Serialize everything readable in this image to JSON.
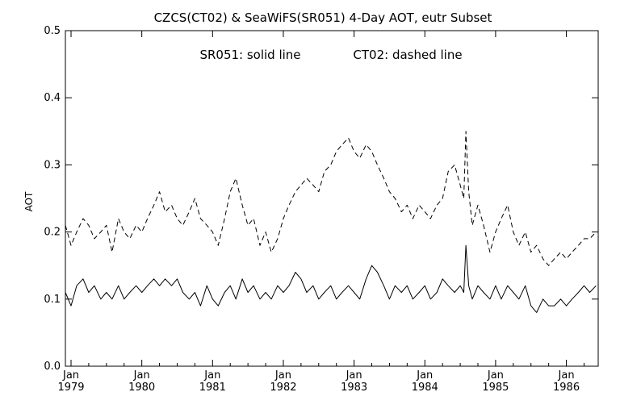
{
  "chart_data": {
    "type": "line",
    "title": "CZCS(CT02) & SeaWiFS(SR051) 4-Day AOT, eutr Subset",
    "annotation_left": "SR051: solid line",
    "annotation_right": "CT02: dashed line",
    "ylabel": "AOT",
    "xlabel": "",
    "ylim": [
      0.0,
      0.5
    ],
    "xlim": [
      1978.92,
      1986.45
    ],
    "yticks": [
      "0.0",
      "0.1",
      "0.2",
      "0.3",
      "0.4",
      "0.5"
    ],
    "xticks": [
      {
        "month": "Jan",
        "year": "1979",
        "x": 1979.0
      },
      {
        "month": "Jan",
        "year": "1980",
        "x": 1980.0
      },
      {
        "month": "Jan",
        "year": "1981",
        "x": 1981.0
      },
      {
        "month": "Jan",
        "year": "1982",
        "x": 1982.0
      },
      {
        "month": "Jan",
        "year": "1983",
        "x": 1983.0
      },
      {
        "month": "Jan",
        "year": "1984",
        "x": 1984.0
      },
      {
        "month": "Jan",
        "year": "1985",
        "x": 1985.0
      },
      {
        "month": "Jan",
        "year": "1986",
        "x": 1986.0
      }
    ],
    "grid": false,
    "series": [
      {
        "name": "SR051",
        "style": "solid",
        "color": "#000000",
        "x": [
          1978.92,
          1979.0,
          1979.08,
          1979.17,
          1979.25,
          1979.33,
          1979.42,
          1979.5,
          1979.58,
          1979.67,
          1979.75,
          1979.83,
          1979.92,
          1980.0,
          1980.08,
          1980.17,
          1980.25,
          1980.33,
          1980.42,
          1980.5,
          1980.58,
          1980.67,
          1980.75,
          1980.83,
          1980.92,
          1981.0,
          1981.08,
          1981.17,
          1981.25,
          1981.33,
          1981.42,
          1981.5,
          1981.58,
          1981.67,
          1981.75,
          1981.83,
          1981.92,
          1982.0,
          1982.08,
          1982.17,
          1982.25,
          1982.33,
          1982.42,
          1982.5,
          1982.58,
          1982.67,
          1982.75,
          1982.83,
          1982.92,
          1983.0,
          1983.08,
          1983.17,
          1983.25,
          1983.33,
          1983.42,
          1983.5,
          1983.58,
          1983.67,
          1983.75,
          1983.83,
          1983.92,
          1984.0,
          1984.08,
          1984.17,
          1984.25,
          1984.33,
          1984.42,
          1984.5,
          1984.55,
          1984.58,
          1984.62,
          1984.67,
          1984.75,
          1984.83,
          1984.92,
          1985.0,
          1985.08,
          1985.17,
          1985.25,
          1985.33,
          1985.42,
          1985.5,
          1985.58,
          1985.67,
          1985.75,
          1985.83,
          1985.92,
          1986.0,
          1986.08,
          1986.17,
          1986.25,
          1986.33,
          1986.42
        ],
        "values": [
          0.11,
          0.09,
          0.12,
          0.13,
          0.11,
          0.12,
          0.1,
          0.11,
          0.1,
          0.12,
          0.1,
          0.11,
          0.12,
          0.11,
          0.12,
          0.13,
          0.12,
          0.13,
          0.12,
          0.13,
          0.11,
          0.1,
          0.11,
          0.09,
          0.12,
          0.1,
          0.09,
          0.11,
          0.12,
          0.1,
          0.13,
          0.11,
          0.12,
          0.1,
          0.11,
          0.1,
          0.12,
          0.11,
          0.12,
          0.14,
          0.13,
          0.11,
          0.12,
          0.1,
          0.11,
          0.12,
          0.1,
          0.11,
          0.12,
          0.11,
          0.1,
          0.13,
          0.15,
          0.14,
          0.12,
          0.1,
          0.12,
          0.11,
          0.12,
          0.1,
          0.11,
          0.12,
          0.1,
          0.11,
          0.13,
          0.12,
          0.11,
          0.12,
          0.11,
          0.18,
          0.12,
          0.1,
          0.12,
          0.11,
          0.1,
          0.12,
          0.1,
          0.12,
          0.11,
          0.1,
          0.12,
          0.09,
          0.08,
          0.1,
          0.09,
          0.09,
          0.1,
          0.09,
          0.1,
          0.11,
          0.12,
          0.11,
          0.12
        ]
      },
      {
        "name": "CT02",
        "style": "dashed",
        "color": "#000000",
        "x": [
          1978.92,
          1979.0,
          1979.08,
          1979.17,
          1979.25,
          1979.33,
          1979.42,
          1979.5,
          1979.58,
          1979.67,
          1979.75,
          1979.83,
          1979.92,
          1980.0,
          1980.08,
          1980.17,
          1980.25,
          1980.33,
          1980.42,
          1980.5,
          1980.58,
          1980.67,
          1980.75,
          1980.83,
          1980.92,
          1981.0,
          1981.08,
          1981.17,
          1981.25,
          1981.33,
          1981.42,
          1981.5,
          1981.58,
          1981.67,
          1981.75,
          1981.83,
          1981.92,
          1982.0,
          1982.08,
          1982.17,
          1982.25,
          1982.33,
          1982.42,
          1982.5,
          1982.58,
          1982.67,
          1982.75,
          1982.83,
          1982.92,
          1983.0,
          1983.08,
          1983.17,
          1983.25,
          1983.33,
          1983.42,
          1983.5,
          1983.58,
          1983.67,
          1983.75,
          1983.83,
          1983.92,
          1984.0,
          1984.08,
          1984.17,
          1984.25,
          1984.33,
          1984.42,
          1984.5,
          1984.55,
          1984.58,
          1984.62,
          1984.67,
          1984.75,
          1984.83,
          1984.92,
          1985.0,
          1985.08,
          1985.17,
          1985.25,
          1985.33,
          1985.42,
          1985.5,
          1985.58,
          1985.67,
          1985.75,
          1985.83,
          1985.92,
          1986.0,
          1986.08,
          1986.17,
          1986.25,
          1986.33,
          1986.42
        ],
        "values": [
          0.21,
          0.18,
          0.2,
          0.22,
          0.21,
          0.19,
          0.2,
          0.21,
          0.17,
          0.22,
          0.2,
          0.19,
          0.21,
          0.2,
          0.22,
          0.24,
          0.26,
          0.23,
          0.24,
          0.22,
          0.21,
          0.23,
          0.25,
          0.22,
          0.21,
          0.2,
          0.18,
          0.22,
          0.26,
          0.28,
          0.24,
          0.21,
          0.22,
          0.18,
          0.2,
          0.17,
          0.19,
          0.22,
          0.24,
          0.26,
          0.27,
          0.28,
          0.27,
          0.26,
          0.29,
          0.3,
          0.32,
          0.33,
          0.34,
          0.32,
          0.31,
          0.33,
          0.32,
          0.3,
          0.28,
          0.26,
          0.25,
          0.23,
          0.24,
          0.22,
          0.24,
          0.23,
          0.22,
          0.24,
          0.25,
          0.29,
          0.3,
          0.27,
          0.25,
          0.35,
          0.26,
          0.21,
          0.24,
          0.21,
          0.17,
          0.2,
          0.22,
          0.24,
          0.2,
          0.18,
          0.2,
          0.17,
          0.18,
          0.16,
          0.15,
          0.16,
          0.17,
          0.16,
          0.17,
          0.18,
          0.19,
          0.19,
          0.2
        ]
      }
    ]
  }
}
